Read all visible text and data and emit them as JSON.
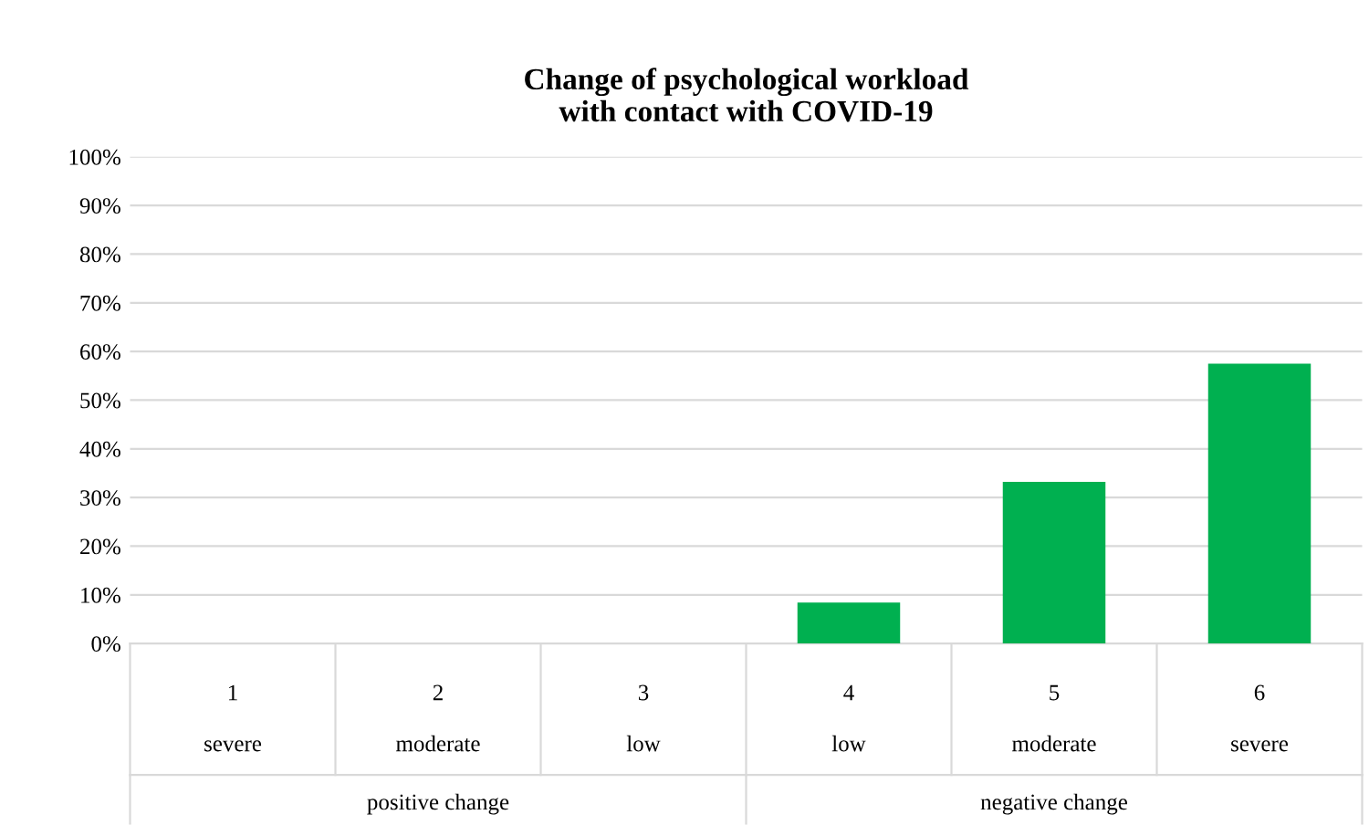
{
  "chart_data": {
    "type": "bar",
    "title": "Change of psychological workload\nwith contact with COVID-19",
    "categories": [
      "1\nsevere",
      "2\nmoderate",
      "3\nlow",
      "4\nlow",
      "5\nmoderate",
      "6\nsevere"
    ],
    "values": [
      0,
      0,
      0,
      8.4,
      33.2,
      57.5
    ],
    "color": "#00b050",
    "ylim": [
      0,
      100
    ],
    "yticks": [
      {
        "value": 0,
        "label": "0%"
      },
      {
        "value": 10,
        "label": "10%"
      },
      {
        "value": 20,
        "label": "20%"
      },
      {
        "value": 30,
        "label": "30%"
      },
      {
        "value": 40,
        "label": "40%"
      },
      {
        "value": 50,
        "label": "50%"
      },
      {
        "value": 60,
        "label": "60%"
      },
      {
        "value": 70,
        "label": "70%"
      },
      {
        "value": 80,
        "label": "80%"
      },
      {
        "value": 90,
        "label": "90%"
      },
      {
        "value": 100,
        "label": "100%"
      }
    ],
    "grid": "y",
    "legend": false,
    "annotations": [
      "positive change",
      "negative change"
    ]
  }
}
